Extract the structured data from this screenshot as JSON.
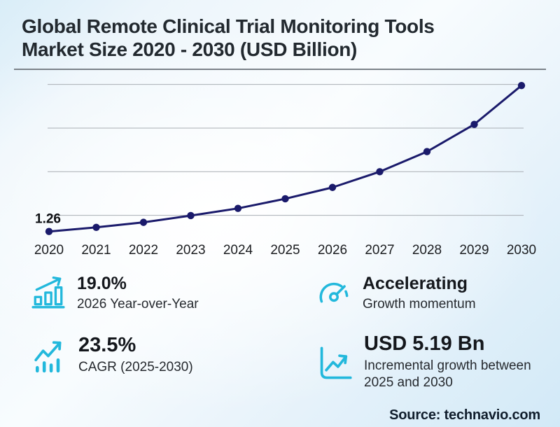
{
  "header": {
    "title_line1": "Global Remote Clinical Trial Monitoring Tools",
    "title_line2": "Market Size 2020 - 2030 (USD Billion)"
  },
  "chart_data": {
    "type": "line",
    "title": "Global Remote Clinical Trial Monitoring Tools Market Size 2020 - 2030 (USD Billion)",
    "categories": [
      "2020",
      "2021",
      "2022",
      "2023",
      "2024",
      "2025",
      "2026",
      "2027",
      "2028",
      "2029",
      "2030"
    ],
    "series": [
      {
        "name": "Market size (USD Billion)",
        "values": [
          1.26,
          1.45,
          1.68,
          1.99,
          2.32,
          2.76,
          3.28,
          4.0,
          4.92,
          6.17,
          7.95
        ]
      }
    ],
    "first_point_label": "1.26",
    "xlabel": "",
    "ylabel": "",
    "ylim": [
      0,
      8.5
    ],
    "gridline_values": [
      2,
      4,
      6,
      8
    ],
    "grid": "horizontal",
    "legend": "none"
  },
  "stats": [
    {
      "icon": "bar-chart-rising-icon",
      "value": "19.0%",
      "label": "2026 Year-over-Year"
    },
    {
      "icon": "speedometer-icon",
      "value": "Accelerating",
      "label": "Growth momentum"
    },
    {
      "icon": "trend-arrow-bars-icon",
      "value": "23.5%",
      "label": "CAGR (2025-2030)"
    },
    {
      "icon": "growth-chart-axis-icon",
      "value": "USD 5.19 Bn",
      "label": "Incremental growth between 2025 and 2030"
    }
  ],
  "footer": {
    "source": "Source: technavio.com"
  },
  "colors": {
    "accent": "#22b8dc",
    "navy": "#1a1a6b",
    "ink": "#22292f"
  }
}
